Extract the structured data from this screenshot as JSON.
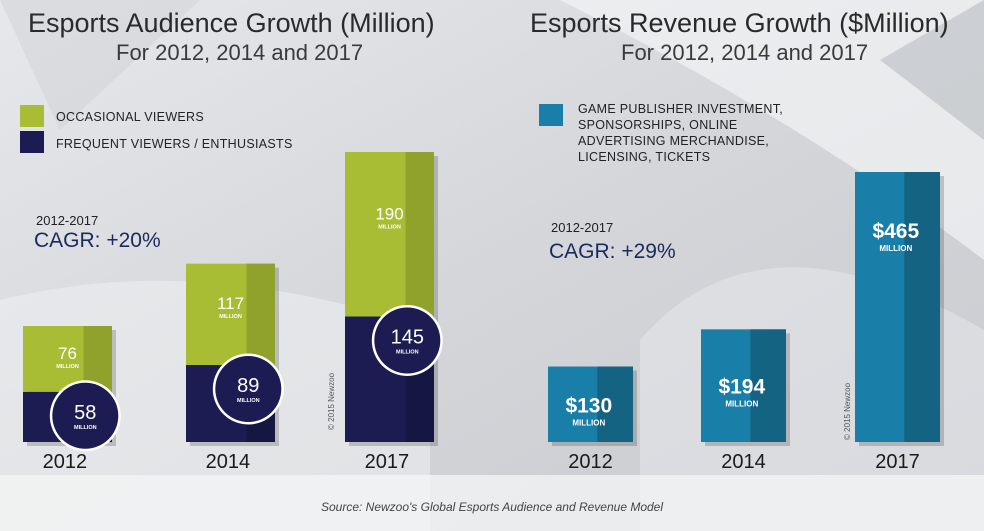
{
  "colors": {
    "occasional": "#a9bd34",
    "frequent": "#1c1c52",
    "revenue": "#1a7fa8",
    "background": "#d9dbdf"
  },
  "audience": {
    "title": "Esports Audience Growth (Million)",
    "subtitle": "For 2012, 2014 and 2017",
    "legend": [
      "OCCASIONAL VIEWERS",
      "FREQUENT VIEWERS / ENTHUSIASTS"
    ],
    "cagr_period": "2012-2017",
    "cagr_value": "CAGR: +20%",
    "copyright": "© 2015 Newzoo"
  },
  "revenue": {
    "title": "Esports Revenue Growth ($Million)",
    "subtitle": "For 2012, 2014 and 2017",
    "legend": [
      "GAME PUBLISHER INVESTMENT,",
      "SPONSORSHIPS, ONLINE",
      "ADVERTISING MERCHANDISE,",
      "LICENSING, TICKETS"
    ],
    "cagr_period": "2012-2017",
    "cagr_value": "CAGR: +29%",
    "copyright": "© 2015 Newzoo"
  },
  "source": "Source: Newzoo's Global Esports Audience and Revenue Model",
  "unit_label": "MILLION",
  "chart_data": [
    {
      "type": "bar",
      "title": "Esports Audience Growth (Million)",
      "subtitle": "For 2012, 2014 and 2017",
      "stacked": true,
      "categories": [
        "2012",
        "2014",
        "2017"
      ],
      "series": [
        {
          "name": "OCCASIONAL VIEWERS",
          "values": [
            76,
            117,
            190
          ],
          "labels": [
            "76",
            "117",
            "190"
          ]
        },
        {
          "name": "FREQUENT VIEWERS / ENTHUSIASTS",
          "values": [
            58,
            89,
            145
          ],
          "labels": [
            "58",
            "89",
            "145"
          ]
        }
      ],
      "ylim": [
        0,
        335
      ],
      "grid": false,
      "legend": "top-left"
    },
    {
      "type": "bar",
      "title": "Esports Revenue Growth ($Million)",
      "subtitle": "For 2012, 2014 and 2017",
      "categories": [
        "2012",
        "2014",
        "2017"
      ],
      "series": [
        {
          "name": "GAME PUBLISHER INVESTMENT, SPONSORSHIPS, ONLINE ADVERTISING MERCHANDISE, LICENSING, TICKETS",
          "values": [
            130,
            194,
            465
          ],
          "labels": [
            "$130",
            "$194",
            "$465"
          ]
        }
      ],
      "ylim": [
        0,
        465
      ],
      "grid": false,
      "legend": "top-left"
    }
  ]
}
